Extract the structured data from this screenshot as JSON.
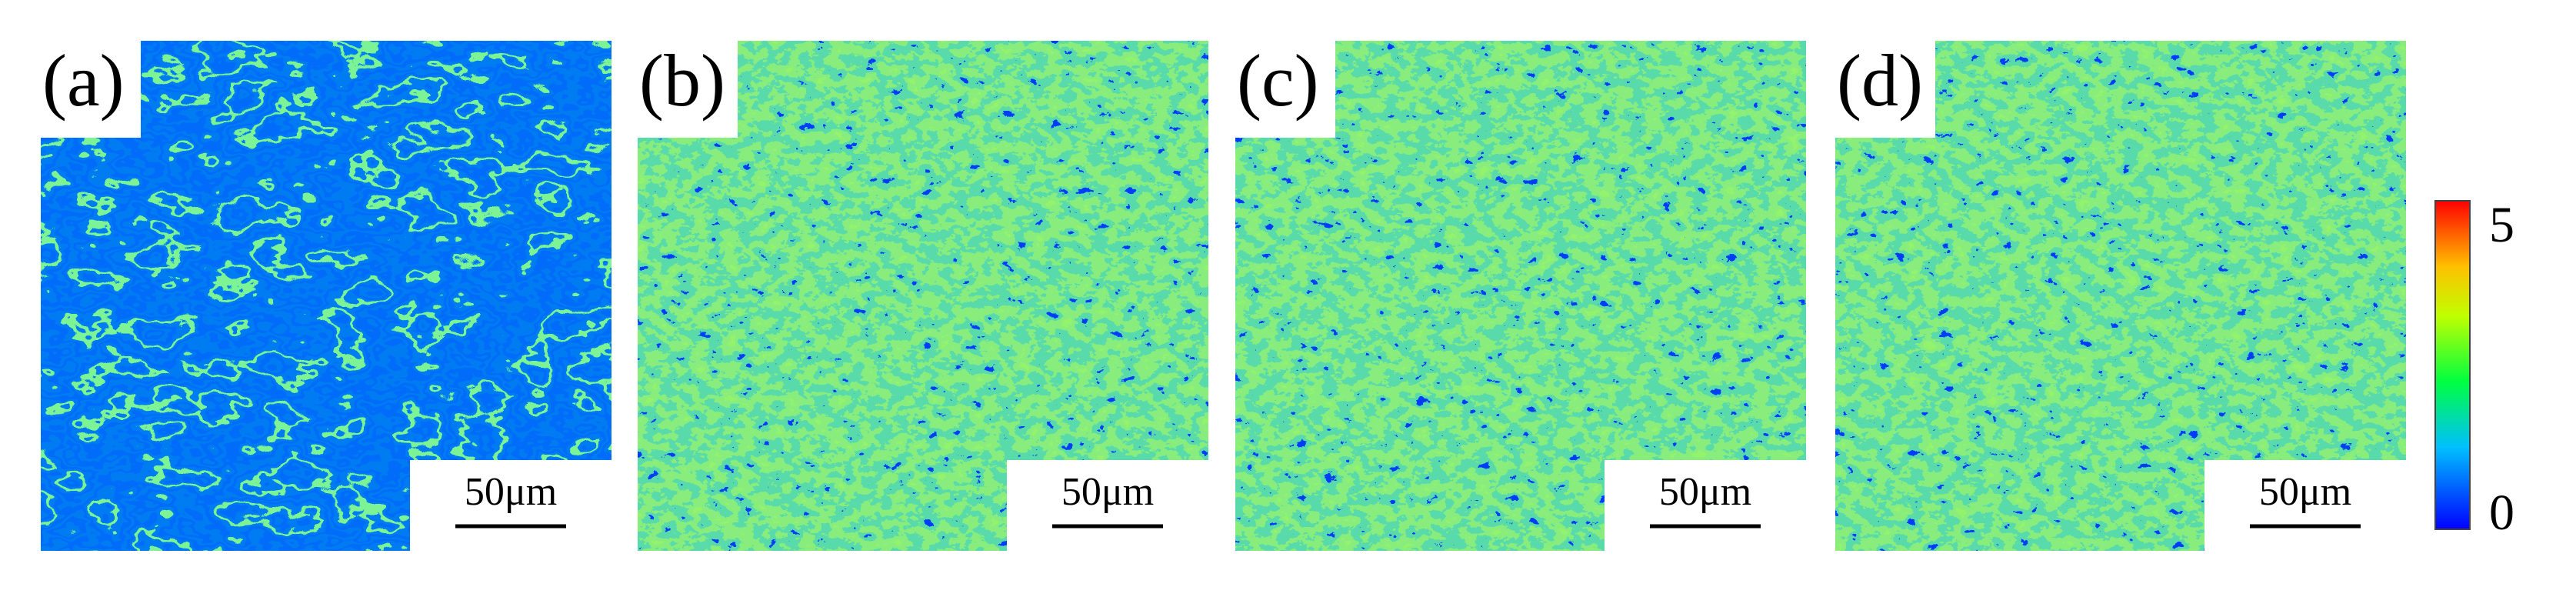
{
  "panels": [
    {
      "label": "(a)",
      "scale_bar": "50μm"
    },
    {
      "label": "(b)",
      "scale_bar": "50μm"
    },
    {
      "label": "(c)",
      "scale_bar": "50μm"
    },
    {
      "label": "(d)",
      "scale_bar": "50μm"
    }
  ],
  "colorbar": {
    "labels": [
      "5",
      "0"
    ]
  }
}
